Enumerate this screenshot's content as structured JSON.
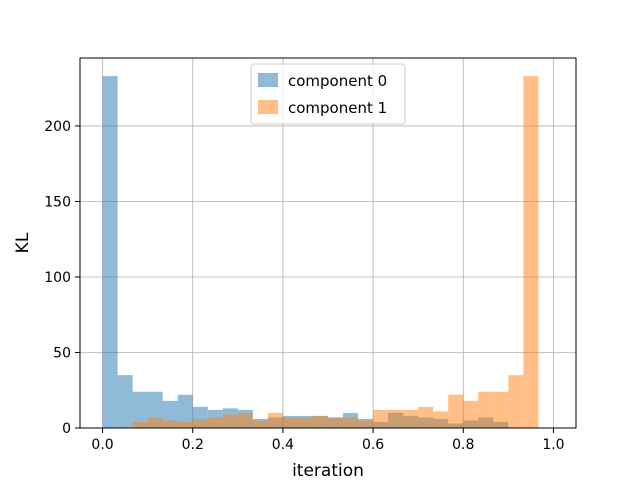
{
  "chart_data": {
    "type": "bar",
    "subtype": "histogram",
    "title": "",
    "xlabel": "iteration",
    "ylabel": "KL",
    "xlim": [
      -0.05,
      1.05
    ],
    "ylim": [
      0,
      245
    ],
    "xticks": [
      0.0,
      0.2,
      0.4,
      0.6,
      0.8,
      1.0
    ],
    "xtick_labels": [
      "0.0",
      "0.2",
      "0.4",
      "0.6",
      "0.8",
      "1.0"
    ],
    "yticks": [
      0,
      50,
      100,
      150,
      200
    ],
    "ytick_labels": [
      "0",
      "50",
      "100",
      "150",
      "200"
    ],
    "grid": true,
    "legend_position": "upper center",
    "bin_edges": [
      0.0,
      0.0333,
      0.0667,
      0.1,
      0.1333,
      0.1667,
      0.2,
      0.2333,
      0.2667,
      0.3,
      0.3333,
      0.3667,
      0.4,
      0.4333,
      0.4667,
      0.5,
      0.5333,
      0.5667,
      0.6,
      0.6333,
      0.6667,
      0.7,
      0.7333,
      0.7667,
      0.8,
      0.8333,
      0.8667,
      0.9,
      0.9333,
      0.9667,
      1.0
    ],
    "series": [
      {
        "name": "component 0",
        "color": "#1f77b4",
        "opacity": 0.5,
        "values": [
          233,
          35,
          24,
          24,
          18,
          22,
          14,
          12,
          13,
          12,
          6,
          7,
          8,
          8,
          8,
          7,
          10,
          6,
          4,
          10,
          8,
          7,
          6,
          3,
          5,
          7,
          4,
          0,
          0,
          0
        ]
      },
      {
        "name": "component 1",
        "color": "#ff7f0e",
        "opacity": 0.5,
        "values": [
          0,
          0,
          4,
          7,
          5,
          4,
          6,
          7,
          9,
          10,
          5,
          10,
          7,
          7,
          8,
          7,
          7,
          5,
          12,
          12,
          12,
          14,
          11,
          22,
          18,
          24,
          24,
          35,
          233,
          0
        ]
      }
    ]
  }
}
